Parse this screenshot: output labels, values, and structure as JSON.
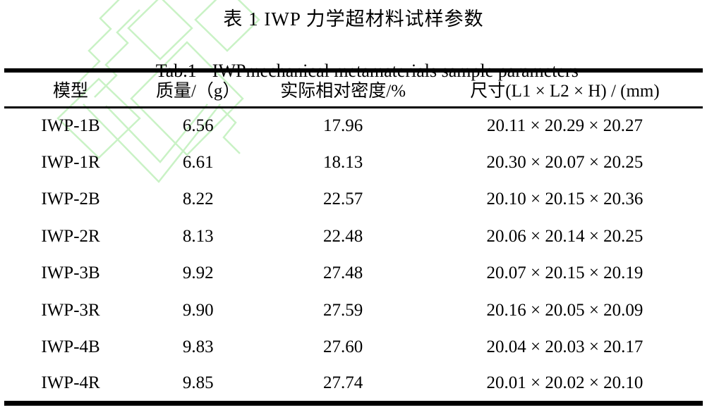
{
  "titles": {
    "zh": "表 1 IWP 力学超材料试样参数",
    "en_prefix": "Tab.1",
    "en_text": "IWPmechanical metamaterials sample parameters"
  },
  "table": {
    "columns": [
      "模型",
      "质量/（g）",
      "实际相对密度/%",
      "尺寸(L1 × L2 × H) / (mm)"
    ],
    "rows": [
      [
        "IWP-1B",
        "6.56",
        "17.96",
        "20.11 × 20.29 × 20.27"
      ],
      [
        "IWP-1R",
        "6.61",
        "18.13",
        "20.30 × 20.07 × 20.25"
      ],
      [
        "IWP-2B",
        "8.22",
        "22.57",
        "20.10 × 20.15 × 20.36"
      ],
      [
        "IWP-2R",
        "8.13",
        "22.48",
        "20.06 × 20.14 × 20.25"
      ],
      [
        "IWP-3B",
        "9.92",
        "27.48",
        "20.07 × 20.15 × 20.19"
      ],
      [
        "IWP-3R",
        "9.90",
        "27.59",
        "20.16 × 20.05 × 20.09"
      ],
      [
        "IWP-4B",
        "9.83",
        "27.60",
        "20.04 × 20.03 × 20.17"
      ],
      [
        "IWP-4R",
        "9.85",
        "27.74",
        "20.01 × 20.02 × 20.10"
      ]
    ]
  },
  "colors": {
    "text": "#000000",
    "rule": "#000000",
    "watermark_green": "#c9f2c5"
  }
}
